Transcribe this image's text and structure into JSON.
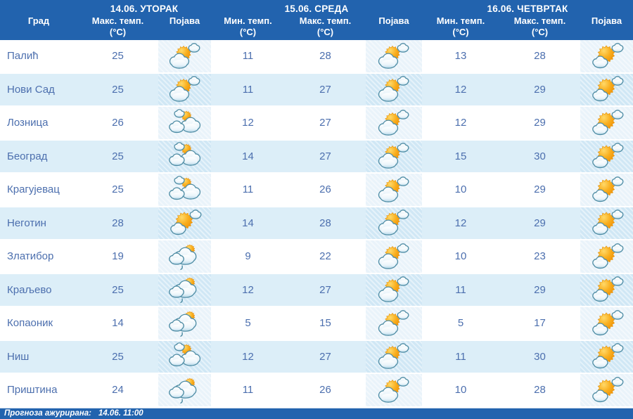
{
  "header": {
    "days": [
      {
        "date_label": "14.06. УТОРАК"
      },
      {
        "date_label": "15.06. СРЕДА"
      },
      {
        "date_label": "16.06. ЧЕТВРТАК"
      }
    ],
    "columns": {
      "city": "Град",
      "max_temp": "Макс. темп.",
      "min_temp": "Мин. темп.",
      "unit": "(°C)",
      "phenomenon": "Појава"
    }
  },
  "table": {
    "rows": [
      {
        "city": "Палић",
        "d1_max": "25",
        "d1_icon": "partly-sunny",
        "d2_min": "11",
        "d2_max": "28",
        "d2_icon": "partly-sunny",
        "d3_min": "13",
        "d3_max": "28",
        "d3_icon": "mostly-sunny"
      },
      {
        "city": "Нови Сад",
        "d1_max": "25",
        "d1_icon": "partly-sunny",
        "d2_min": "11",
        "d2_max": "27",
        "d2_icon": "partly-sunny",
        "d3_min": "12",
        "d3_max": "29",
        "d3_icon": "mostly-sunny"
      },
      {
        "city": "Лозница",
        "d1_max": "26",
        "d1_icon": "mostly-cloudy",
        "d2_min": "12",
        "d2_max": "27",
        "d2_icon": "partly-sunny",
        "d3_min": "12",
        "d3_max": "29",
        "d3_icon": "mostly-sunny"
      },
      {
        "city": "Београд",
        "d1_max": "25",
        "d1_icon": "mostly-cloudy",
        "d2_min": "14",
        "d2_max": "27",
        "d2_icon": "partly-sunny",
        "d3_min": "15",
        "d3_max": "30",
        "d3_icon": "mostly-sunny"
      },
      {
        "city": "Крагујевац",
        "d1_max": "25",
        "d1_icon": "mostly-cloudy",
        "d2_min": "11",
        "d2_max": "26",
        "d2_icon": "partly-sunny",
        "d3_min": "10",
        "d3_max": "29",
        "d3_icon": "mostly-sunny"
      },
      {
        "city": "Неготин",
        "d1_max": "28",
        "d1_icon": "mostly-sunny",
        "d2_min": "14",
        "d2_max": "28",
        "d2_icon": "partly-sunny",
        "d3_min": "12",
        "d3_max": "29",
        "d3_icon": "mostly-sunny"
      },
      {
        "city": "Златибор",
        "d1_max": "19",
        "d1_icon": "cloudy-light-rain",
        "d2_min": "9",
        "d2_max": "22",
        "d2_icon": "partly-sunny",
        "d3_min": "10",
        "d3_max": "23",
        "d3_icon": "mostly-sunny"
      },
      {
        "city": "Краљево",
        "d1_max": "25",
        "d1_icon": "cloudy-light-rain",
        "d2_min": "12",
        "d2_max": "27",
        "d2_icon": "partly-sunny",
        "d3_min": "11",
        "d3_max": "29",
        "d3_icon": "mostly-sunny"
      },
      {
        "city": "Копаоник",
        "d1_max": "14",
        "d1_icon": "cloudy-light-rain",
        "d2_min": "5",
        "d2_max": "15",
        "d2_icon": "partly-sunny",
        "d3_min": "5",
        "d3_max": "17",
        "d3_icon": "mostly-sunny"
      },
      {
        "city": "Ниш",
        "d1_max": "25",
        "d1_icon": "mostly-cloudy",
        "d2_min": "12",
        "d2_max": "27",
        "d2_icon": "partly-sunny",
        "d3_min": "11",
        "d3_max": "30",
        "d3_icon": "mostly-sunny"
      },
      {
        "city": "Приштина",
        "d1_max": "24",
        "d1_icon": "cloudy-light-rain",
        "d2_min": "11",
        "d2_max": "26",
        "d2_icon": "partly-sunny",
        "d3_min": "10",
        "d3_max": "28",
        "d3_icon": "mostly-sunny"
      }
    ]
  },
  "footer": {
    "updated_label": "Прогноза ажурирана:",
    "updated_value": "14.06. 11:00"
  },
  "colors": {
    "header_bg": "#2263ae",
    "row_alt_bg": "#dceef8",
    "text_blue": "#4c6fae",
    "sun_orange": "#f9ae1d",
    "cloud_outline": "#4e8ca4"
  }
}
